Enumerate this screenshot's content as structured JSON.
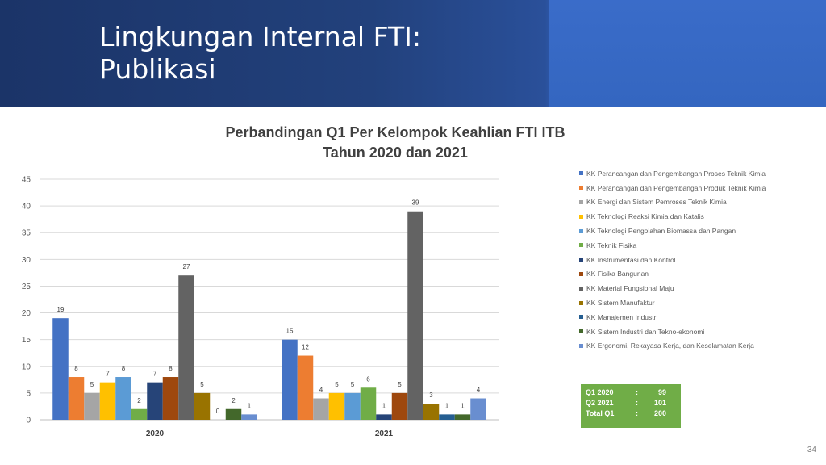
{
  "slide": {
    "title_line1": "Lingkungan Internal FTI:",
    "title_line2": "Publikasi",
    "page_number": "34"
  },
  "summary": {
    "rows": [
      {
        "label": "Q1   2020",
        "sep": ":",
        "value": "99"
      },
      {
        "label": "Q2   2021",
        "sep": ":",
        "value": "101"
      },
      {
        "label": "Total Q1",
        "sep": ":",
        "value": "200"
      }
    ]
  },
  "chart_data": {
    "type": "bar",
    "title_line1": "Perbandingan Q1 Per Kelompok Keahlian FTI ITB",
    "title_line2": "Tahun 2020 dan 2021",
    "categories": [
      "2020",
      "2021"
    ],
    "ylim": [
      0,
      45
    ],
    "yticks": [
      0,
      5,
      10,
      15,
      20,
      25,
      30,
      35,
      40,
      45
    ],
    "grid": true,
    "legend_position": "right",
    "series": [
      {
        "name": "KK Perancangan dan Pengembangan Proses Teknik Kimia",
        "color": "#4472c4",
        "values": [
          19,
          15
        ]
      },
      {
        "name": "KK Perancangan dan Pengembangan Produk Teknik Kimia",
        "color": "#ed7d31",
        "values": [
          8,
          12
        ]
      },
      {
        "name": "KK Energi dan Sistem Pemroses Teknik Kimia",
        "color": "#a5a5a5",
        "values": [
          5,
          4
        ]
      },
      {
        "name": "KK Teknologi Reaksi Kimia dan Katalis",
        "color": "#ffc000",
        "values": [
          7,
          5
        ]
      },
      {
        "name": "KK Teknologi Pengolahan Biomassa dan Pangan",
        "color": "#5b9bd5",
        "values": [
          8,
          5
        ]
      },
      {
        "name": "KK Teknik Fisika",
        "color": "#70ad47",
        "values": [
          2,
          6
        ]
      },
      {
        "name": "KK Instrumentasi dan Kontrol",
        "color": "#264478",
        "values": [
          7,
          1
        ]
      },
      {
        "name": "KK Fisika Bangunan",
        "color": "#9e480e",
        "values": [
          8,
          5
        ]
      },
      {
        "name": "KK Material Fungsional Maju",
        "color": "#636363",
        "values": [
          27,
          39
        ]
      },
      {
        "name": "KK Sistem Manufaktur",
        "color": "#997300",
        "values": [
          5,
          3
        ]
      },
      {
        "name": "KK Manajemen Industri",
        "color": "#255e91",
        "values": [
          0,
          1
        ]
      },
      {
        "name": "KK Sistem Industri dan Tekno-ekonomi",
        "color": "#43682b",
        "values": [
          2,
          1
        ]
      },
      {
        "name": "KK Ergonomi, Rekayasa Kerja, dan Keselamatan Kerja",
        "color": "#698ed0",
        "values": [
          1,
          4
        ]
      }
    ]
  }
}
